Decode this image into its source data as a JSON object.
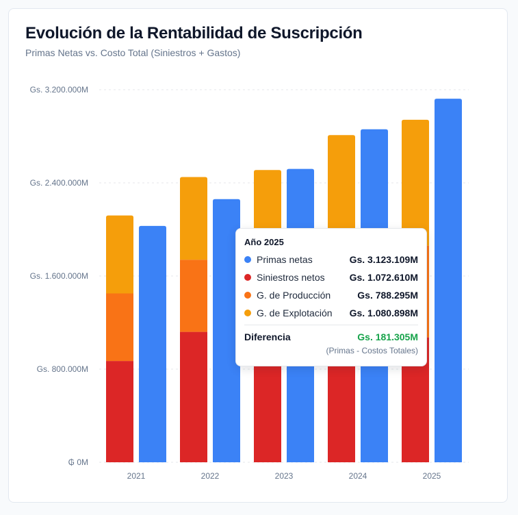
{
  "header": {
    "title": "Evolución de la Rentabilidad de Suscripción",
    "subtitle": "Primas Netas vs. Costo Total (Siniestros + Gastos)"
  },
  "colors": {
    "primas": "#3b82f6",
    "siniestros": "#dc2626",
    "produccion": "#f97316",
    "explotacion": "#f59e0b",
    "positive": "#16a34a"
  },
  "chart_data": {
    "type": "bar",
    "stacking": "cost stack (siniestros + produccion + explotacion) next to primas",
    "categories": [
      "2021",
      "2022",
      "2023",
      "2024",
      "2025"
    ],
    "y_ticks": [
      {
        "value": 0,
        "label": "₲ 0M"
      },
      {
        "value": 800000,
        "label": "Gs. 800.000M"
      },
      {
        "value": 1600000,
        "label": "Gs. 1.600.000M"
      },
      {
        "value": 2400000,
        "label": "Gs. 2.400.000M"
      },
      {
        "value": 3200000,
        "label": "Gs. 3.200.000M"
      }
    ],
    "ylim": [
      0,
      3200000
    ],
    "y_unit": "millones de Gs.",
    "grid": true,
    "series": [
      {
        "name": "Siniestros netos",
        "key": "siniestros",
        "stack": "costos",
        "values": [
          870000,
          1120000,
          920000,
          1000000,
          1072610
        ]
      },
      {
        "name": "G. de Producción",
        "key": "produccion",
        "stack": "costos",
        "values": [
          580000,
          620000,
          600000,
          650000,
          788295
        ]
      },
      {
        "name": "G. de Explotación",
        "key": "explotacion",
        "stack": "costos",
        "values": [
          670000,
          710000,
          990000,
          1160000,
          1080898
        ]
      },
      {
        "name": "Primas netas",
        "key": "primas",
        "stack": "primas",
        "values": [
          2030000,
          2260000,
          2520000,
          2860000,
          3123109
        ]
      }
    ]
  },
  "tooltip": {
    "title": "Año 2025",
    "rows": [
      {
        "label": "Primas netas",
        "value": "Gs. 3.123.109M",
        "key": "primas"
      },
      {
        "label": "Siniestros netos",
        "value": "Gs. 1.072.610M",
        "key": "siniestros"
      },
      {
        "label": "G. de Producción",
        "value": "Gs. 788.295M",
        "key": "produccion"
      },
      {
        "label": "G. de Explotación",
        "value": "Gs. 1.080.898M",
        "key": "explotacion"
      }
    ],
    "diff_label": "Diferencia",
    "diff_value": "Gs. 181.305M",
    "note": "(Primas - Costos Totales)"
  }
}
